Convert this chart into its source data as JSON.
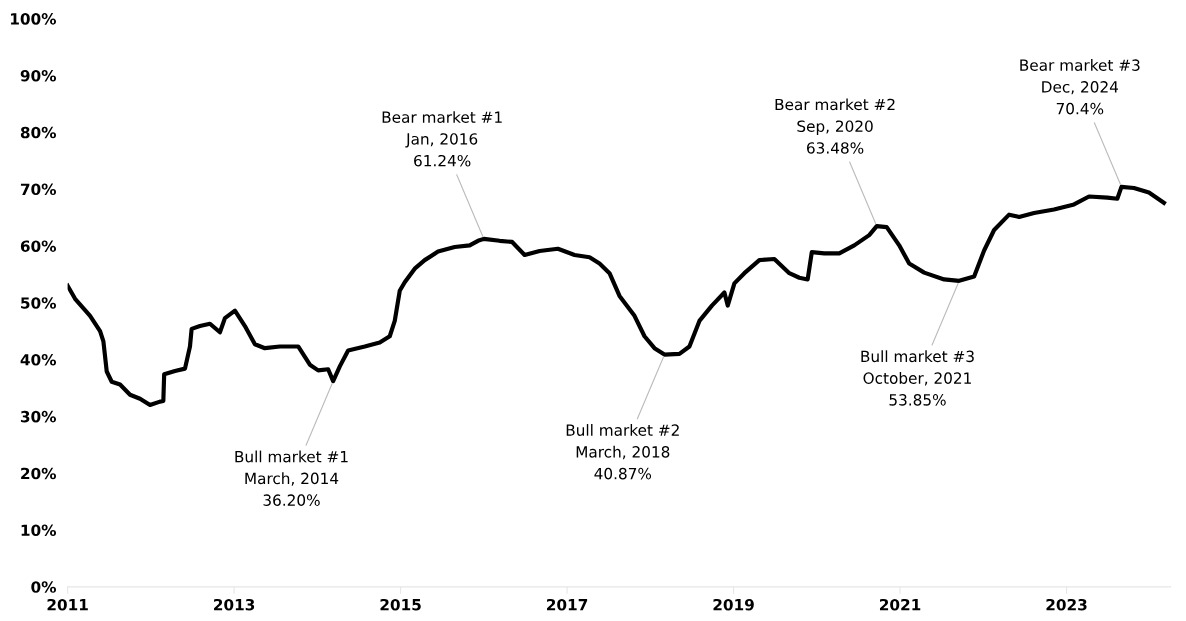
{
  "chart_data": {
    "type": "line",
    "x": [
      2011.0,
      2011.09,
      2011.27,
      2011.39,
      2011.43,
      2011.47,
      2011.53,
      2011.63,
      2011.75,
      2011.87,
      2011.99,
      2012.11,
      2012.15,
      2012.16,
      2012.29,
      2012.41,
      2012.47,
      2012.49,
      2012.59,
      2012.71,
      2012.83,
      2012.89,
      2013.01,
      2013.13,
      2013.25,
      2013.37,
      2013.55,
      2013.77,
      2013.91,
      2014.01,
      2014.13,
      2014.19,
      2014.27,
      2014.37,
      2014.57,
      2014.75,
      2014.87,
      2014.93,
      2014.99,
      2015.05,
      2015.17,
      2015.29,
      2015.45,
      2015.65,
      2015.83,
      2015.93,
      2016.0,
      2016.19,
      2016.34,
      2016.49,
      2016.67,
      2016.89,
      2017.09,
      2017.27,
      2017.39,
      2017.51,
      2017.63,
      2017.81,
      2017.93,
      2018.05,
      2018.17,
      2018.35,
      2018.47,
      2018.59,
      2018.74,
      2018.89,
      2018.93,
      2019.01,
      2019.13,
      2019.31,
      2019.49,
      2019.67,
      2019.79,
      2019.89,
      2019.94,
      2020.09,
      2020.27,
      2020.45,
      2020.63,
      2020.72,
      2020.84,
      2020.99,
      2021.11,
      2021.29,
      2021.53,
      2021.71,
      2021.89,
      2022.01,
      2022.13,
      2022.31,
      2022.43,
      2022.61,
      2022.85,
      2023.09,
      2023.27,
      2023.49,
      2023.61,
      2023.66,
      2023.81,
      2023.99,
      2024.17
    ],
    "series": [
      {
        "color": "#000000",
        "values": [
          53.0,
          50.7,
          47.7,
          45.0,
          43.2,
          37.9,
          36.1,
          35.6,
          33.8,
          33.1,
          32.0,
          32.6,
          32.7,
          37.4,
          38.0,
          38.4,
          42.3,
          45.4,
          45.9,
          46.3,
          44.8,
          47.3,
          48.6,
          45.9,
          42.7,
          42.0,
          42.3,
          42.3,
          39.1,
          38.1,
          38.3,
          36.2,
          38.8,
          41.6,
          42.3,
          43.0,
          44.1,
          46.8,
          52.1,
          53.6,
          56.0,
          57.5,
          59.0,
          59.8,
          60.1,
          60.9,
          61.24,
          60.9,
          60.7,
          58.4,
          59.1,
          59.5,
          58.4,
          58.0,
          56.9,
          55.2,
          51.2,
          47.7,
          44.1,
          42.0,
          40.87,
          41.0,
          42.3,
          46.8,
          49.5,
          51.8,
          49.5,
          53.4,
          55.2,
          57.5,
          57.7,
          55.2,
          54.4,
          54.1,
          58.9,
          58.7,
          58.7,
          60.1,
          61.9,
          63.48,
          63.3,
          60.1,
          56.9,
          55.3,
          54.1,
          53.85,
          54.6,
          59.2,
          62.8,
          65.5,
          65.1,
          65.8,
          66.4,
          67.3,
          68.7,
          68.5,
          68.3,
          70.4,
          70.2,
          69.4,
          67.6
        ]
      }
    ],
    "xlim": [
      2011.0,
      2024.25
    ],
    "xticks": [
      2011,
      2013,
      2015,
      2017,
      2019,
      2021,
      2023
    ],
    "ylim": [
      0,
      100
    ],
    "yticks": [
      {
        "value": 0,
        "label": "0%"
      },
      {
        "value": 10,
        "label": "10%"
      },
      {
        "value": 20,
        "label": "20%"
      },
      {
        "value": 30,
        "label": "30%"
      },
      {
        "value": 40,
        "label": "40%"
      },
      {
        "value": 50,
        "label": "50%"
      },
      {
        "value": 60,
        "label": "60%"
      },
      {
        "value": 70,
        "label": "70%"
      },
      {
        "value": 80,
        "label": "80%"
      },
      {
        "value": 90,
        "label": "90%"
      },
      {
        "value": 100,
        "label": "100%"
      }
    ],
    "annotations": [
      {
        "text": "Bull market #1\nMarch, 2014\n36.20%",
        "x": 2014.19,
        "y": 36.2
      },
      {
        "text": "Bear market #1\nJan, 2016\n61.24%",
        "x": 2016.0,
        "y": 61.24
      },
      {
        "text": "Bull market #2\nMarch, 2018\n40.87%",
        "x": 2018.17,
        "y": 40.87
      },
      {
        "text": "Bear market #2\nSep, 2020\n63.48%",
        "x": 2020.72,
        "y": 63.48
      },
      {
        "text": "Bull market #3\nOctober, 2021\n53.85%",
        "x": 2021.71,
        "y": 53.85
      },
      {
        "text": "Bear market #3\nDec, 2024\n70.4%",
        "x": 2023.66,
        "y": 70.4
      }
    ],
    "line_style": "solid",
    "marker": "none",
    "grid": false,
    "legend": false
  }
}
